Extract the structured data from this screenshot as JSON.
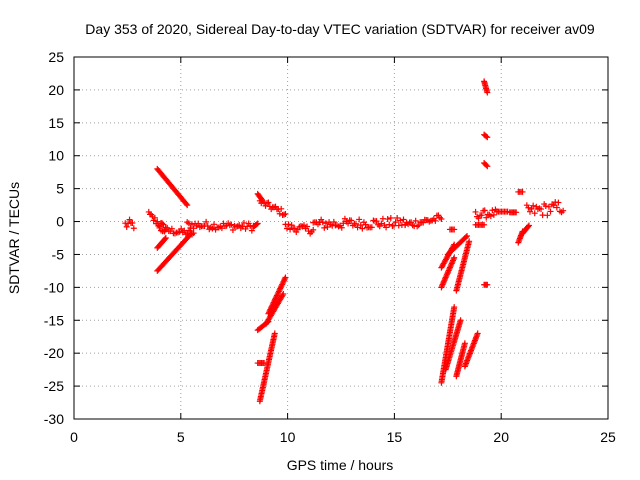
{
  "chart_data": {
    "type": "scatter",
    "title": "Day 353 of 2020, Sidereal Day-to-day VTEC variation (SDTVAR) for receiver av09",
    "xlabel": "GPS time / hours",
    "ylabel": "SDTVAR / TECUs",
    "xlim": [
      0,
      25
    ],
    "ylim": [
      -30,
      25
    ],
    "xticks": [
      0,
      5,
      10,
      15,
      20,
      25
    ],
    "yticks": [
      -30,
      -25,
      -20,
      -15,
      -10,
      -5,
      0,
      5,
      10,
      15,
      20,
      25
    ],
    "grid": true,
    "marker": "+",
    "marker_color": "#ff0000",
    "segments": [
      {
        "x": [
          2.4,
          2.8
        ],
        "y": [
          -0.5,
          -0.5
        ],
        "spread": 0.8
      },
      {
        "x": [
          3.5,
          4.3
        ],
        "y": [
          1.0,
          -1.2
        ],
        "spread": 0.6
      },
      {
        "x": [
          3.9,
          5.3
        ],
        "y": [
          8.0,
          2.5
        ]
      },
      {
        "x": [
          3.9,
          5.5
        ],
        "y": [
          -7.5,
          -1.8
        ]
      },
      {
        "x": [
          3.9,
          4.3
        ],
        "y": [
          -4.0,
          -2.5
        ]
      },
      {
        "x": [
          4.0,
          5.6
        ],
        "y": [
          -1.2,
          -1.8
        ],
        "spread": 0.5
      },
      {
        "x": [
          5.3,
          8.4
        ],
        "y": [
          -0.5,
          -0.8
        ],
        "spread": 0.6
      },
      {
        "x": [
          8.4,
          8.6
        ],
        "y": [
          -0.8,
          -0.3
        ]
      },
      {
        "x": [
          8.6,
          8.8
        ],
        "y": [
          4.2,
          3.3
        ]
      },
      {
        "x": [
          8.7,
          9.9
        ],
        "y": [
          3.0,
          1.2
        ],
        "spread": 0.5
      },
      {
        "x": [
          8.6,
          9.1
        ],
        "y": [
          -16.5,
          -15.2
        ]
      },
      {
        "x": [
          9.1,
          9.9
        ],
        "y": [
          -14.0,
          -8.5
        ]
      },
      {
        "x": [
          9.0,
          9.8
        ],
        "y": [
          -15.5,
          -11.0
        ]
      },
      {
        "x": [
          8.6,
          8.9
        ],
        "y": [
          -21.5,
          -21.5
        ]
      },
      {
        "x": [
          8.7,
          9.4
        ],
        "y": [
          -27.3,
          -17.0
        ]
      },
      {
        "x": [
          9.9,
          11.2
        ],
        "y": [
          -0.8,
          -1.3
        ],
        "spread": 0.6
      },
      {
        "x": [
          11.2,
          15.5
        ],
        "y": [
          -0.4,
          -0.2
        ],
        "spread": 0.8
      },
      {
        "x": [
          15.5,
          17.2
        ],
        "y": [
          -0.5,
          0.5
        ],
        "spread": 0.6
      },
      {
        "x": [
          17.2,
          17.8
        ],
        "y": [
          -7.0,
          -3.5
        ]
      },
      {
        "x": [
          17.2,
          17.8
        ],
        "y": [
          -10.0,
          -5.5
        ]
      },
      {
        "x": [
          17.5,
          18.4
        ],
        "y": [
          -5.0,
          -2.2
        ]
      },
      {
        "x": [
          17.6,
          17.8
        ],
        "y": [
          -1.2,
          -1.2
        ]
      },
      {
        "x": [
          17.9,
          18.5
        ],
        "y": [
          -10.5,
          -3.0
        ]
      },
      {
        "x": [
          17.2,
          17.8
        ],
        "y": [
          -24.5,
          -13.0
        ]
      },
      {
        "x": [
          17.4,
          18.1
        ],
        "y": [
          -22.5,
          -15.0
        ]
      },
      {
        "x": [
          17.9,
          18.3
        ],
        "y": [
          -23.5,
          -18.5
        ]
      },
      {
        "x": [
          18.3,
          18.9
        ],
        "y": [
          -22.0,
          -17.0
        ]
      },
      {
        "x": [
          18.8,
          19.8
        ],
        "y": [
          1.0,
          1.3
        ],
        "spread": 0.6
      },
      {
        "x": [
          18.8,
          19.2
        ],
        "y": [
          -0.5,
          -0.5
        ]
      },
      {
        "x": [
          19.2,
          19.35
        ],
        "y": [
          21.3,
          19.6
        ]
      },
      {
        "x": [
          19.2,
          19.35
        ],
        "y": [
          13.2,
          12.8
        ]
      },
      {
        "x": [
          19.2,
          19.35
        ],
        "y": [
          8.9,
          8.4
        ]
      },
      {
        "x": [
          19.2,
          19.35
        ],
        "y": [
          -9.6,
          -9.6
        ]
      },
      {
        "x": [
          19.8,
          20.3
        ],
        "y": [
          1.5,
          1.5
        ]
      },
      {
        "x": [
          20.4,
          20.7
        ],
        "y": [
          1.4,
          1.4
        ]
      },
      {
        "x": [
          20.8,
          21.0
        ],
        "y": [
          -3.2,
          -1.5
        ]
      },
      {
        "x": [
          21.0,
          21.3
        ],
        "y": [
          -1.8,
          -0.6
        ]
      },
      {
        "x": [
          20.8,
          21.0
        ],
        "y": [
          4.5,
          4.5
        ]
      },
      {
        "x": [
          21.2,
          22.9
        ],
        "y": [
          1.5,
          2.2
        ],
        "spread": 1.0
      }
    ]
  }
}
